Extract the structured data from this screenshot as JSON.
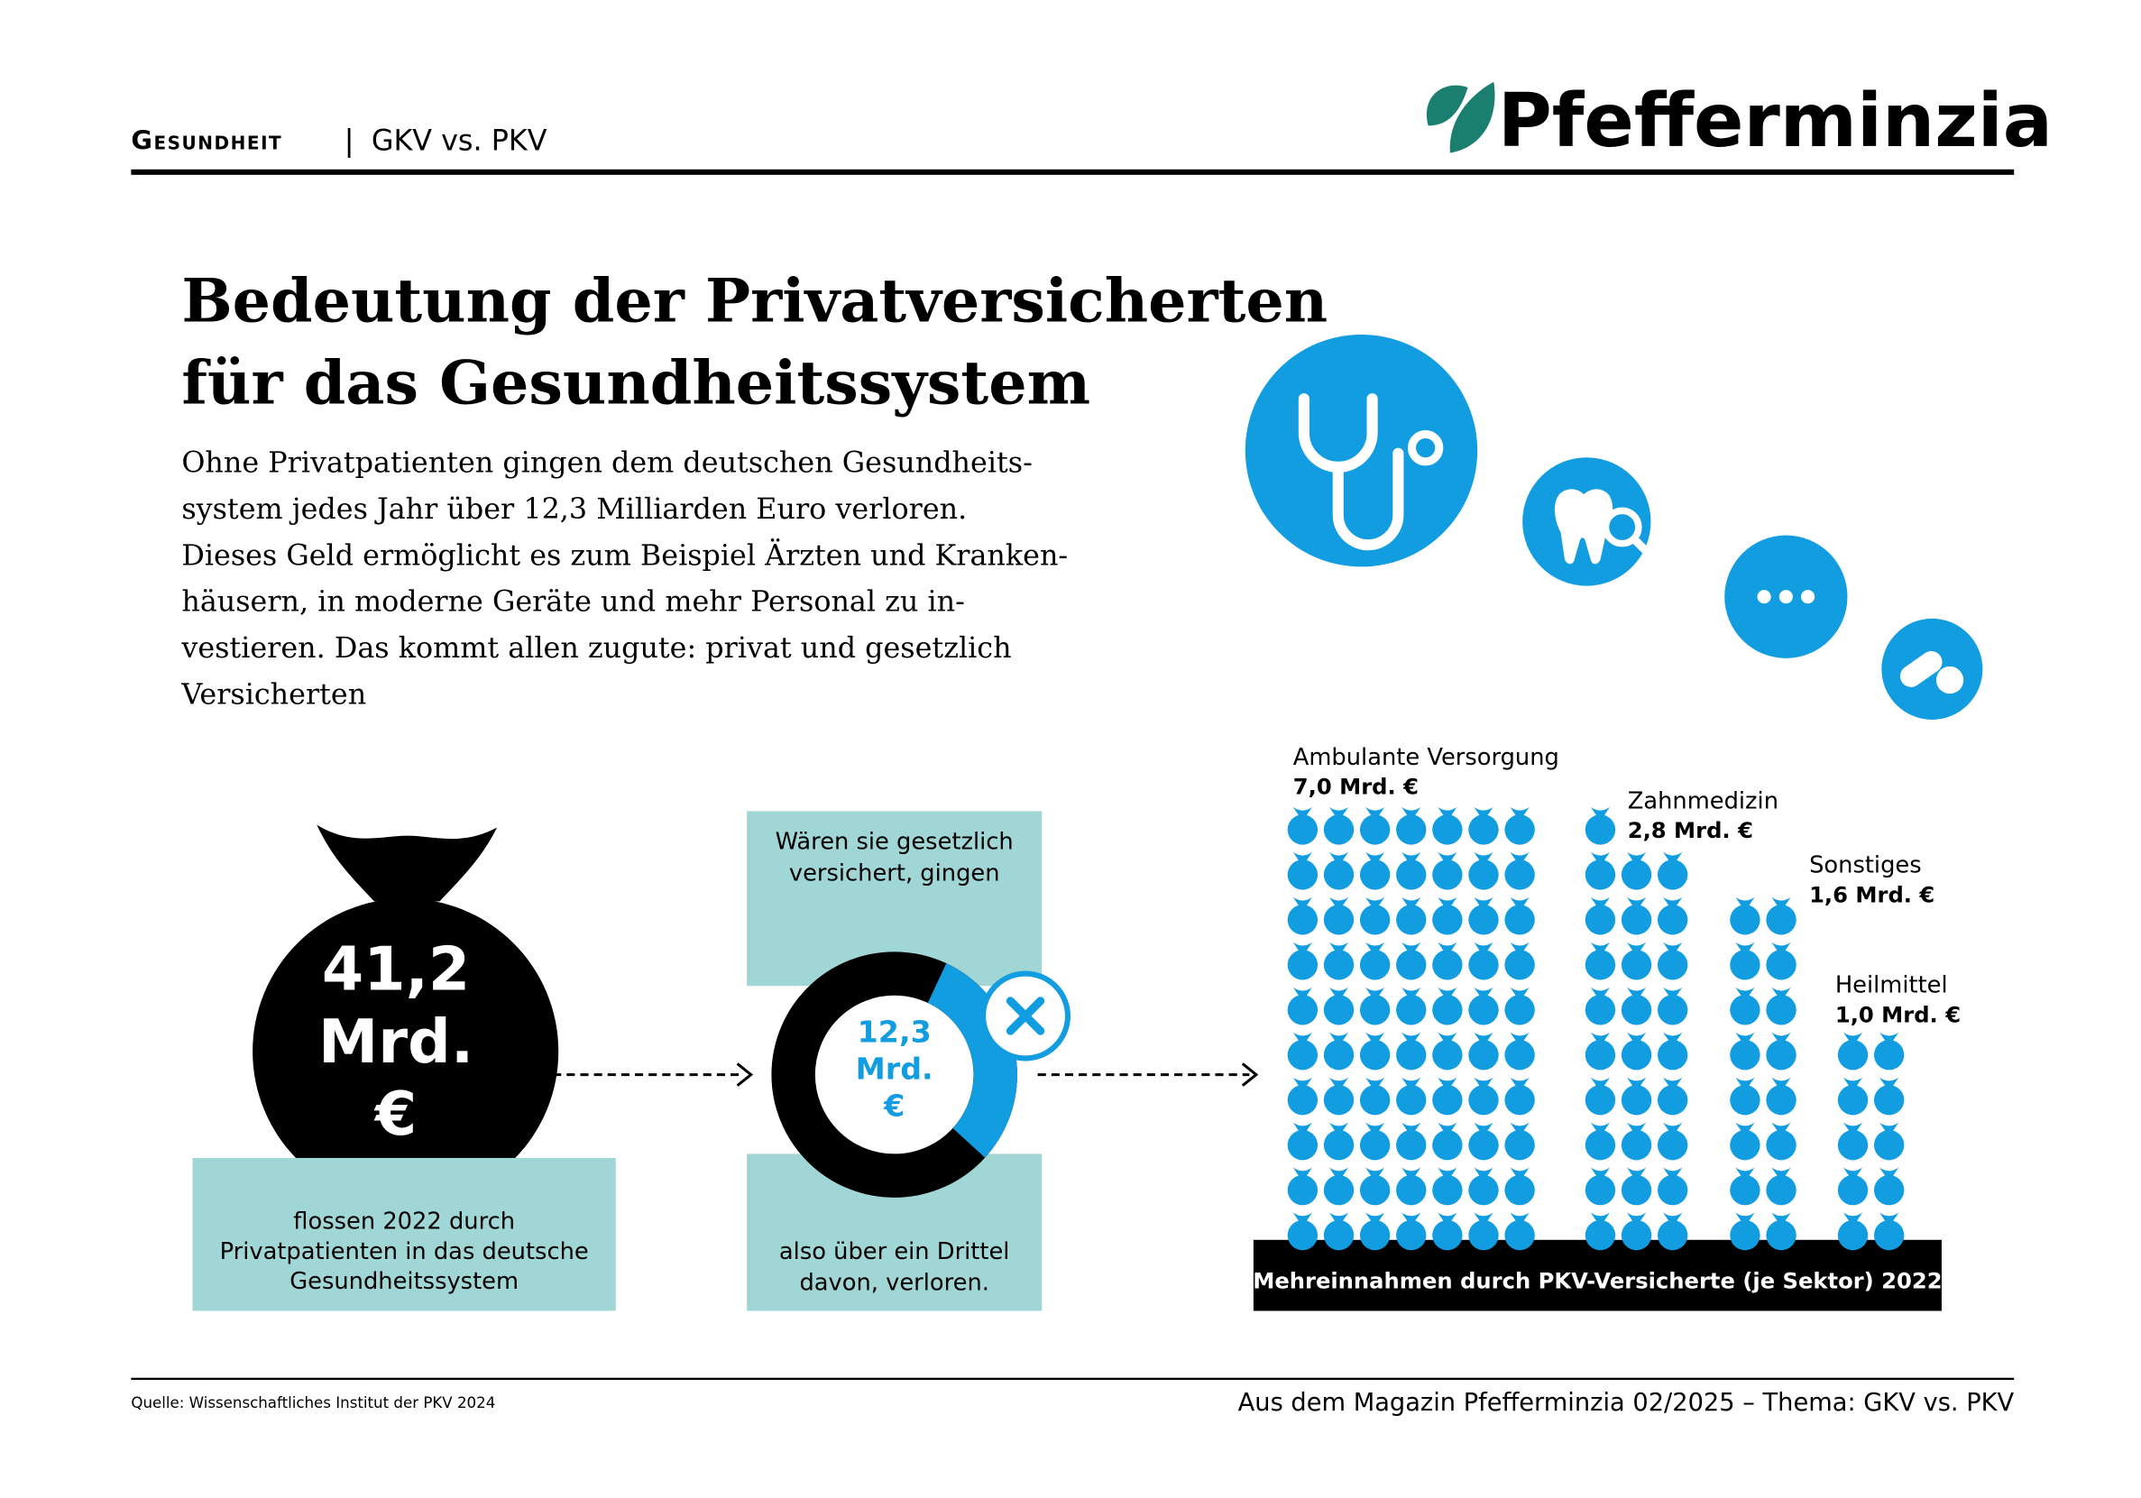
{
  "header": {
    "section": "Gesundheit",
    "topic": "GKV vs. PKV",
    "brand": "Pfefferminzia"
  },
  "title_lines": [
    "Bedeutung der Privatversicherten",
    "für das Gesundheitssystem"
  ],
  "body_lines": [
    "Ohne Privatpatienten gingen dem deutschen Gesundheits-",
    "system jedes Jahr über 12,3 Milliarden Euro verloren.",
    "Dieses Geld ermöglicht es zum Beispiel Ärzten und Kranken-",
    "häusern, in moderne Geräte und mehr Personal zu in-",
    "vestieren. Das kommt allen zugute: privat und gesetzlich",
    "Versicherten"
  ],
  "total": {
    "value": 41.2,
    "label_lines": [
      "41,2",
      "Mrd.",
      "€"
    ],
    "caption_lines": [
      "flossen 2022 durch",
      "Privatpatienten in das deutsche",
      "Gesundheitssystem"
    ]
  },
  "lost": {
    "value": 12.3,
    "label_lines": [
      "12,3",
      "Mrd.",
      "€"
    ],
    "top_lines": [
      "Wären sie gesetzlich",
      "versichert, gingen"
    ],
    "bottom_lines": [
      "also über ein Drittel",
      "davon, verloren."
    ]
  },
  "chart_data": {
    "type": "pictogram",
    "title": "Mehreinnahmen durch PKV-Versicherte (je Sektor) 2022",
    "color": "#129de0",
    "categories": [
      "Ambulante Versorgung",
      "Zahnmedizin",
      "Sonstiges",
      "Heilmittel"
    ],
    "values": [
      7.0,
      2.8,
      1.6,
      1.0
    ],
    "value_labels": [
      "7,0 Mrd. €",
      "2,8 Mrd. €",
      "1,6 Mrd. €",
      "1,0 Mrd. €"
    ]
  },
  "footer": {
    "source": "Quelle: Wissenschaftliches Institut der PKV 2024",
    "magazine": "Aus dem Magazin Pfefferminzia 02/2025 – Thema: GKV vs. PKV"
  }
}
